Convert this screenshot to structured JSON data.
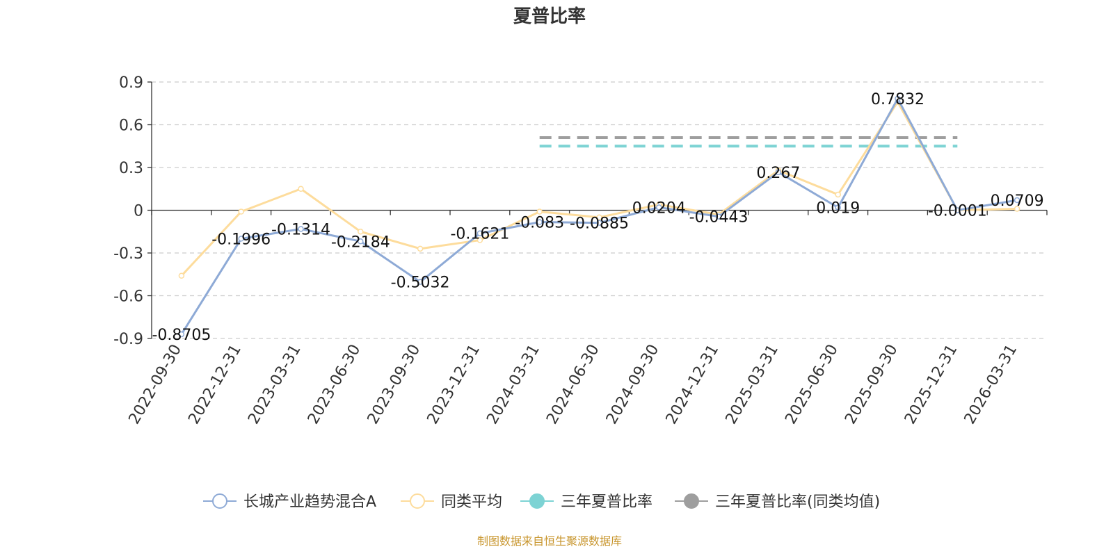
{
  "chart_data": {
    "type": "line",
    "title": "夏普比率",
    "source_note": "制图数据来自恒生聚源数据库",
    "categories": [
      "2022-09-30",
      "2022-12-31",
      "2023-03-31",
      "2023-06-30",
      "2023-09-30",
      "2023-12-31",
      "2024-03-31",
      "2024-06-30",
      "2024-09-30",
      "2024-12-31",
      "2025-03-31",
      "2025-06-30",
      "2025-09-30",
      "2025-12-31",
      "2026-03-31"
    ],
    "ylim": [
      -0.9,
      0.9
    ],
    "yticks": [
      0.9,
      0.6,
      0.3,
      0,
      -0.3,
      -0.6,
      -0.9
    ],
    "ytick_labels": [
      "0.9",
      "0.6",
      "0.3",
      "0",
      "-0.3",
      "-0.6",
      "-0.9"
    ],
    "grid": true,
    "legend_position": "bottom",
    "series": [
      {
        "name": "长城产业趋势混合A",
        "color": "#8eaad6",
        "values": [
          -0.8705,
          -0.1996,
          -0.1314,
          -0.2184,
          -0.5032,
          -0.1621,
          -0.083,
          -0.0885,
          0.0204,
          -0.0443,
          0.267,
          0.019,
          0.7832,
          -0.0001,
          0.0709
        ],
        "labels": [
          "-0.8705",
          "-0.1996",
          "-0.1314",
          "-0.2184",
          "-0.5032",
          "-0.1621",
          "-0.083",
          "-0.0885",
          "0.0204",
          "-0.0443",
          "0.267",
          "0.019",
          "0.7832",
          "-0.0001",
          "0.0709"
        ]
      },
      {
        "name": "同类平均",
        "color": "#fddc9c",
        "values": [
          -0.46,
          -0.01,
          0.15,
          -0.15,
          -0.27,
          -0.21,
          -0.01,
          -0.05,
          0.04,
          -0.03,
          0.28,
          0.11,
          0.76,
          0.0,
          0.01
        ]
      },
      {
        "name": "三年夏普比率",
        "color": "#7dd3d4",
        "value": 0.45,
        "range": [
          "2024-03-31",
          "2025-12-31"
        ],
        "style": "dashed"
      },
      {
        "name": "三年夏普比率(同类均值)",
        "color": "#9e9e9e",
        "value": 0.51,
        "range": [
          "2024-03-31",
          "2025-12-31"
        ],
        "style": "dashed"
      }
    ]
  }
}
